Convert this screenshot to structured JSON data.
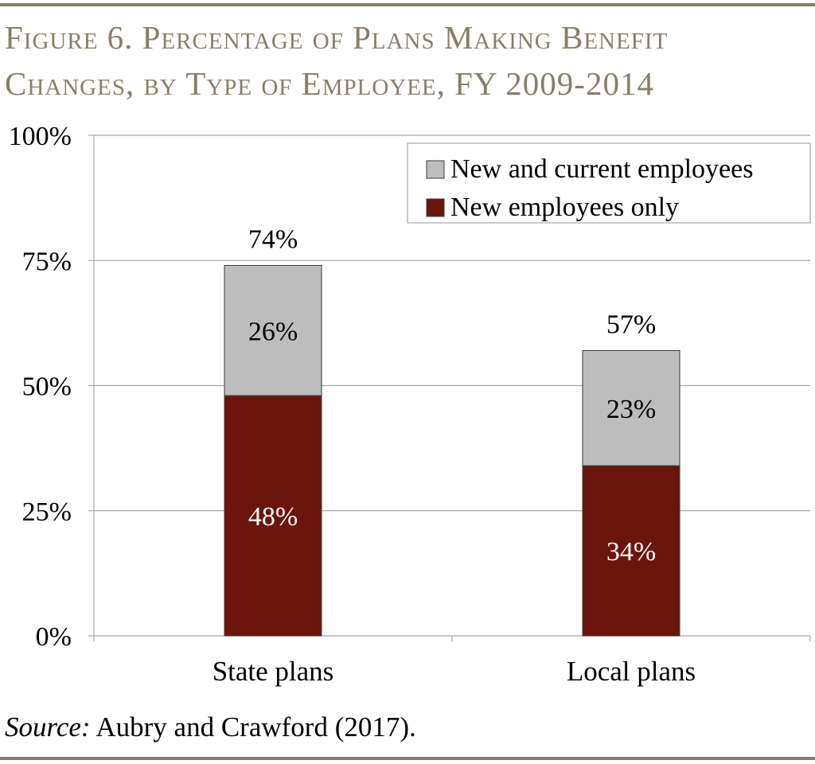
{
  "chart_data": {
    "type": "bar",
    "stacked": true,
    "title_line1": "Figure 6. Percentage of Plans Making Benefit",
    "title_line2": "Changes, by Type of Employee, FY 2009-2014",
    "categories": [
      "State plans",
      "Local plans"
    ],
    "series": [
      {
        "name": "New employees only",
        "color": "#6b150d",
        "values": [
          48,
          34
        ],
        "labels": [
          "48%",
          "34%"
        ],
        "label_color": "#ffffff"
      },
      {
        "name": "New and current employees",
        "color": "#bdbdbd",
        "values": [
          26,
          23
        ],
        "labels": [
          "26%",
          "23%"
        ],
        "label_color": "#000000"
      }
    ],
    "totals": [
      74,
      57
    ],
    "total_labels": [
      "74%",
      "57%"
    ],
    "ylim": [
      0,
      100
    ],
    "yticks": [
      0,
      25,
      50,
      75,
      100
    ],
    "ytick_labels": [
      "0%",
      "25%",
      "50%",
      "75%",
      "100%"
    ],
    "xlabel": "",
    "ylabel": "",
    "grid": true,
    "legend_position": "top-right",
    "legend_order": [
      "New and current employees",
      "New employees only"
    ]
  },
  "source": {
    "label": "Source:",
    "text": "Aubry and Crawford (2017)."
  },
  "colors": {
    "title": "#8b7d65",
    "rule": "#8b7d65",
    "grid": "#a6a6a6",
    "bar_outline": "#3a3a3a"
  }
}
